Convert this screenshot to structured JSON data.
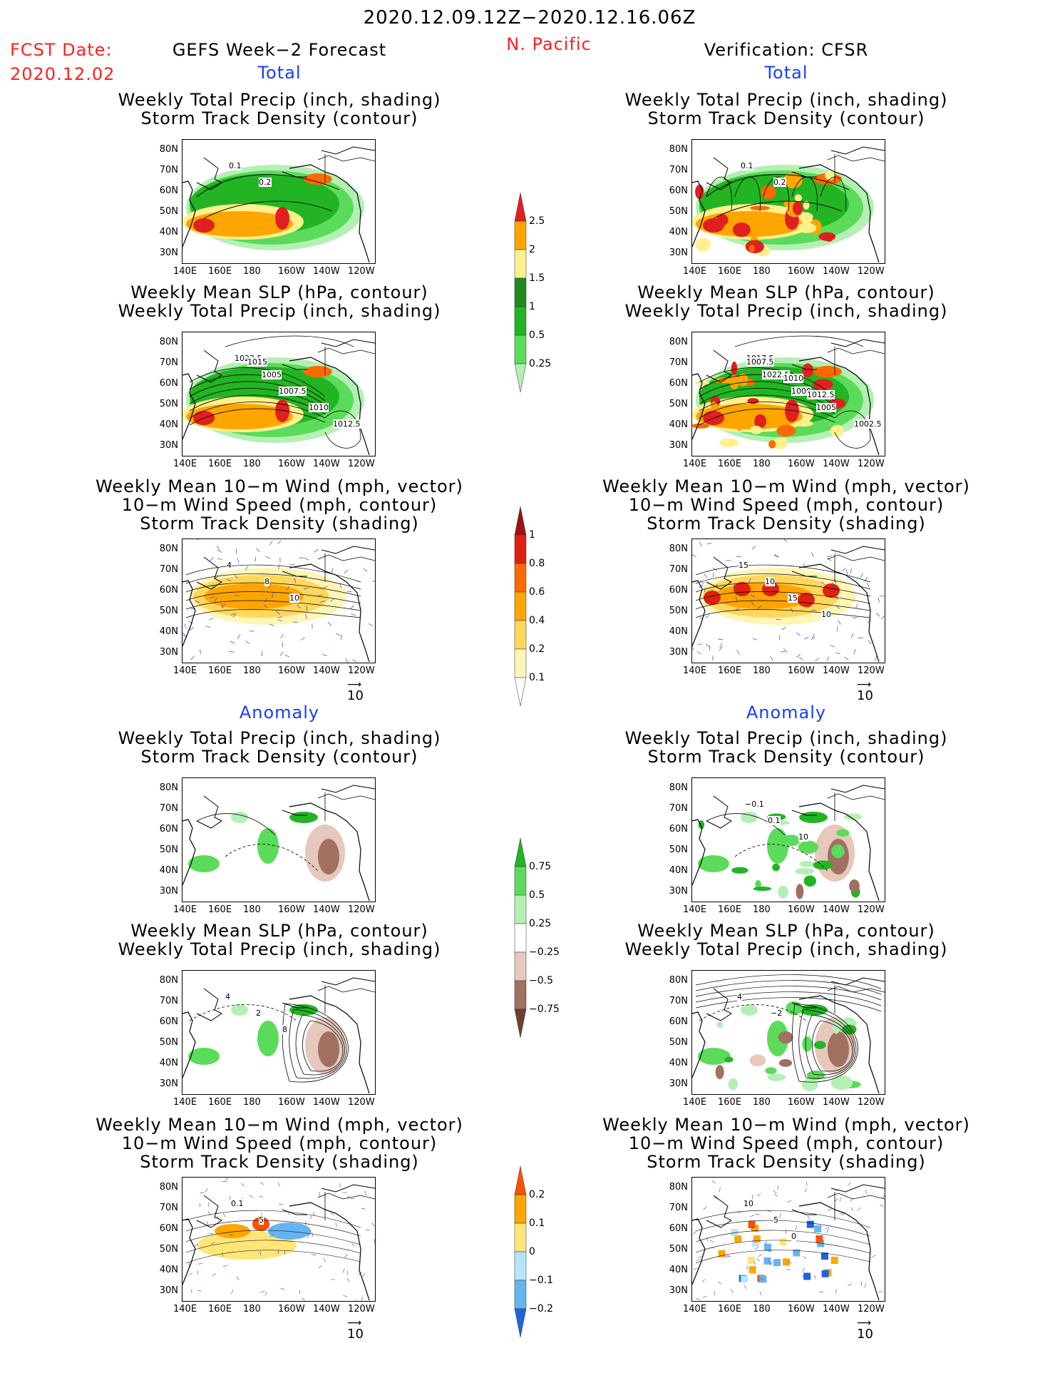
{
  "header": {
    "period": "2020.12.09.12Z−2020.12.16.06Z",
    "fcst_label": "FCST Date:",
    "fcst_date": "2020.12.02",
    "region": "N. Pacific",
    "left_title": "GEFS Week−2 Forecast",
    "right_title": "Verification: CFSR"
  },
  "sections": {
    "total": "Total",
    "anomaly": "Anomaly"
  },
  "panel_titles": {
    "precip_track": [
      "Weekly Total Precip (inch, shading)",
      "Storm Track Density (contour)"
    ],
    "slp_precip": [
      "Weekly Mean SLP (hPa, contour)",
      "Weekly Total Precip (inch, shading)"
    ],
    "wind_track": [
      "Weekly Mean 10−m Wind (mph, vector)",
      "10−m Wind Speed (mph, contour)",
      "Storm Track Density (shading)"
    ]
  },
  "axes": {
    "lat_ticks": [
      "80N",
      "70N",
      "60N",
      "50N",
      "40N",
      "30N"
    ],
    "lon_ticks": [
      "140E",
      "160E",
      "180",
      "160W",
      "140W",
      "120W"
    ]
  },
  "colorbars": {
    "precip_total": [
      "2.5",
      "2",
      "1.5",
      "1",
      "0.5",
      "0.25"
    ],
    "track_total": [
      "1",
      "0.8",
      "0.6",
      "0.4",
      "0.2",
      "0.1"
    ],
    "precip_anom": [
      "0.75",
      "0.5",
      "0.25",
      "−0.25",
      "−0.5",
      "−0.75"
    ],
    "track_anom": [
      "0.2",
      "0.1",
      "0",
      "−0.1",
      "−0.2"
    ]
  },
  "vector_ref": "10",
  "contour_labels": {
    "gefs_precip_track": [
      "0.1",
      "0.2"
    ],
    "cfsr_precip_track": [
      "0.1",
      "0.2"
    ],
    "gefs_slp": [
      "1022.5",
      "1005",
      "1007.5",
      "1010",
      "1012.5",
      "1015"
    ],
    "cfsr_slp": [
      "1017.5",
      "1022.5",
      "1000",
      "1005",
      "1002.5",
      "1007.5",
      "1010",
      "1012.5"
    ],
    "gefs_wind": [
      "4",
      "8",
      "10"
    ],
    "cfsr_wind": [
      "15",
      "10",
      "15",
      "10"
    ],
    "cfsr_anom_precip": [
      "−0.1",
      "0.1",
      "10"
    ],
    "gefs_anom_slp": [
      "4",
      "2",
      "8"
    ],
    "cfsr_anom_slp": [
      "4",
      "−2"
    ],
    "gefs_anom_wind": [
      "0.1",
      "5"
    ],
    "cfsr_anom_wind": [
      "10",
      "5",
      "0"
    ]
  },
  "colors": {
    "precip": [
      "#b4f0b4",
      "#5adc5a",
      "#23b423",
      "#1e8c1e",
      "#fff08c",
      "#ffa500",
      "#ff6a00",
      "#e02020"
    ],
    "track": [
      "#fff5b4",
      "#ffd75a",
      "#ffa500",
      "#ff6a00",
      "#e02010",
      "#a01010"
    ],
    "anom_precip": [
      "#6e4030",
      "#a07060",
      "#e6c8bc",
      "#ffffff",
      "#b4f0b4",
      "#5adc5a",
      "#23b423"
    ],
    "anom_track": [
      "#1e64dc",
      "#64b4f0",
      "#b4e6fa",
      "#ffffff",
      "#ffe678",
      "#ffa500",
      "#ff5000"
    ]
  }
}
